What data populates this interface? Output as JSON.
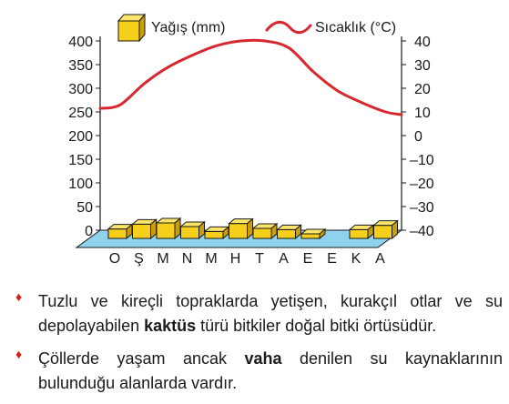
{
  "chart_data": {
    "type": "bar",
    "categories": [
      "O",
      "Ş",
      "M",
      "N",
      "M",
      "H",
      "T",
      "A",
      "E",
      "E",
      "K",
      "A"
    ],
    "series": [
      {
        "name": "Yağış (mm)",
        "type": "bar",
        "axis": "left",
        "values": [
          14,
          22,
          24,
          18,
          10,
          23,
          15,
          13,
          6,
          0,
          13,
          20
        ]
      },
      {
        "name": "Sıcaklık (°C)",
        "type": "line",
        "axis": "right",
        "values": [
          13,
          22,
          29,
          34,
          38,
          40,
          40,
          37,
          27,
          19,
          14,
          10
        ]
      }
    ],
    "left_axis": {
      "range": [
        0,
        400
      ],
      "ticks": [
        0,
        50,
        100,
        150,
        200,
        250,
        300,
        350,
        400
      ]
    },
    "right_axis": {
      "range": [
        -40,
        40
      ],
      "ticks": [
        "40",
        "30",
        "20",
        "10",
        "0",
        "–10",
        "–20",
        "–30",
        "–40"
      ]
    },
    "legend": {
      "position": "top",
      "bar_label": "Yağış (mm)",
      "line_label": "Sıcaklık (°C)"
    },
    "colors": {
      "bar": "#f5cf1c",
      "bar_side": "#c99d0c",
      "line": "#d7272f",
      "floor": "#8ed2ee"
    }
  },
  "bullets": [
    {
      "parts": [
        {
          "text": "Tuzlu ve kireçli topraklarda yetişen, kurakçıl otlar ve su depolayabilen ",
          "bold": false
        },
        {
          "text": "kaktüs",
          "bold": true
        },
        {
          "text": " türü bitkiler doğal bitki örtüsüdür.",
          "bold": false
        }
      ]
    },
    {
      "parts": [
        {
          "text": "Çöllerde yaşam ancak ",
          "bold": false
        },
        {
          "text": "vaha",
          "bold": true
        },
        {
          "text": " denilen su kaynaklarının bulunduğu alanlarda vardır.",
          "bold": false
        }
      ]
    }
  ]
}
